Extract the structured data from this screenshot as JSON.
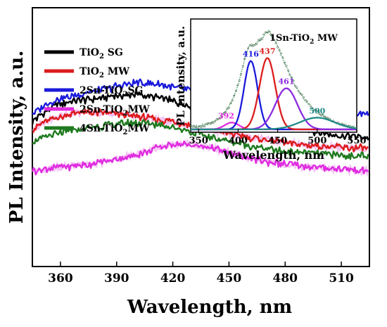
{
  "chart_data": [
    {
      "type": "line",
      "xlabel": "Wavelength, nm",
      "ylabel": "PL Intensity, a.u.",
      "xlim": [
        345,
        525
      ],
      "x_ticks": [
        360,
        390,
        420,
        450,
        480,
        510
      ],
      "y_ticks_labeled": false,
      "grid": false,
      "legend_position": "top-left",
      "series": [
        {
          "name": "TiO2 SG",
          "legend_base": "TiO",
          "legend_sub": "2",
          "legend_rest": " SG",
          "color": "#000000",
          "x": [
            345,
            352,
            360,
            370,
            380,
            390,
            400,
            410,
            420,
            430,
            440,
            450,
            460,
            470,
            480,
            490,
            500,
            510,
            525
          ],
          "y": [
            0.56,
            0.6,
            0.63,
            0.64,
            0.65,
            0.66,
            0.665,
            0.655,
            0.64,
            0.62,
            0.6,
            0.585,
            0.575,
            0.56,
            0.545,
            0.53,
            0.515,
            0.505,
            0.5
          ]
        },
        {
          "name": "TiO2 MW",
          "legend_base": "TiO",
          "legend_sub": "2",
          "legend_rest": " MW",
          "color": "#dd1c1c",
          "x": [
            345,
            352,
            360,
            370,
            380,
            390,
            400,
            410,
            420,
            430,
            440,
            450,
            460,
            470,
            480,
            490,
            500,
            510,
            525
          ],
          "y": [
            0.53,
            0.56,
            0.58,
            0.595,
            0.595,
            0.59,
            0.58,
            0.57,
            0.56,
            0.545,
            0.53,
            0.515,
            0.5,
            0.49,
            0.48,
            0.47,
            0.465,
            0.46,
            0.455
          ]
        },
        {
          "name": "2Sn-TiO2SG",
          "legend_base": "2Sn-TiO",
          "legend_sub": "2",
          "legend_rest": "SG",
          "color": "#1a1adc",
          "x": [
            345,
            352,
            360,
            370,
            380,
            390,
            400,
            410,
            420,
            430,
            440,
            450,
            460,
            470,
            480,
            490,
            500,
            510,
            525
          ],
          "y": [
            0.59,
            0.625,
            0.65,
            0.665,
            0.68,
            0.695,
            0.71,
            0.705,
            0.695,
            0.68,
            0.665,
            0.65,
            0.64,
            0.625,
            0.61,
            0.6,
            0.595,
            0.59,
            0.59
          ]
        },
        {
          "name": "2Sn-TiO2MW",
          "legend_base": "2Sn-TiO",
          "legend_sub": "2",
          "legend_rest": "MW",
          "color": "#e02ce0",
          "x": [
            345,
            352,
            360,
            370,
            380,
            390,
            400,
            410,
            420,
            430,
            440,
            450,
            460,
            470,
            480,
            490,
            500,
            510,
            525
          ],
          "y": [
            0.37,
            0.375,
            0.385,
            0.39,
            0.4,
            0.415,
            0.43,
            0.455,
            0.475,
            0.47,
            0.46,
            0.44,
            0.42,
            0.405,
            0.395,
            0.385,
            0.38,
            0.375,
            0.37
          ]
        },
        {
          "name": "4Sn-TiO2MW",
          "legend_base": "4Sn-TiO",
          "legend_sub": "2",
          "legend_rest": "MW",
          "color": "#1f7a1f",
          "x": [
            345,
            352,
            360,
            370,
            380,
            390,
            400,
            410,
            420,
            430,
            440,
            450,
            460,
            470,
            480,
            490,
            500,
            510,
            525
          ],
          "y": [
            0.48,
            0.5,
            0.515,
            0.53,
            0.54,
            0.55,
            0.555,
            0.55,
            0.54,
            0.52,
            0.5,
            0.485,
            0.47,
            0.455,
            0.445,
            0.44,
            0.435,
            0.43,
            0.425
          ]
        }
      ]
    },
    {
      "type": "line",
      "title_base": "1Sn-TiO",
      "title_sub": "2",
      "title_rest": " MW",
      "xlabel": "Wavelength, nm",
      "ylabel": "PL Intensity, a.u.",
      "xlim": [
        340,
        550
      ],
      "x_ticks": [
        350,
        400,
        450,
        500,
        550
      ],
      "y_ticks_labeled": false,
      "grid": false,
      "experimental": {
        "color": "#2e8b57",
        "x": [
          340,
          350,
          360,
          370,
          380,
          390,
          400,
          405,
          410,
          415,
          420,
          425,
          430,
          435,
          440,
          445,
          450,
          460,
          470,
          480,
          490,
          500,
          510,
          520,
          530,
          540,
          550
        ],
        "y": [
          0.02,
          0.03,
          0.05,
          0.08,
          0.14,
          0.25,
          0.45,
          0.62,
          0.78,
          0.86,
          0.85,
          0.9,
          0.93,
          0.99,
          1.0,
          0.92,
          0.85,
          0.66,
          0.48,
          0.35,
          0.25,
          0.18,
          0.12,
          0.08,
          0.05,
          0.03,
          0.02
        ]
      },
      "peaks": [
        {
          "center": 392,
          "label": "392",
          "amplitude": 0.07,
          "sigma": 9,
          "color": "#e02ce0"
        },
        {
          "center": 416,
          "label": "416",
          "amplitude": 0.7,
          "sigma": 8.5,
          "color": "#1a1adc"
        },
        {
          "center": 437,
          "label": "437",
          "amplitude": 0.73,
          "sigma": 10,
          "color": "#dd1c1c"
        },
        {
          "center": 461,
          "label": "461",
          "amplitude": 0.42,
          "sigma": 14,
          "color": "#8a2be2"
        },
        {
          "center": 500,
          "label": "500",
          "amplitude": 0.12,
          "sigma": 22,
          "color": "#1f8a8a"
        }
      ]
    }
  ]
}
